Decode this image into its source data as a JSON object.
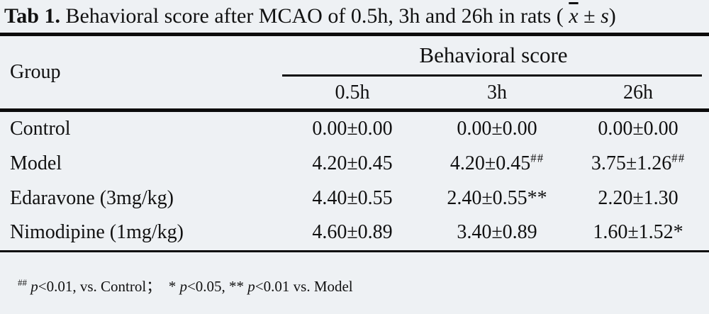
{
  "colors": {
    "background": "#eef1f4",
    "rule": "#0c0c0c",
    "text": "#111111"
  },
  "title": {
    "label_bold": "Tab 1.",
    "text": " Behavioral score after MCAO of 0.5h, 3h and 26h in rats ( ",
    "xbar": "x",
    "pm": " ± ",
    "s_var": "s",
    "close_paren": ")"
  },
  "table": {
    "group_header": "Group",
    "span_header": "Behavioral score",
    "col_headers": [
      "0.5h",
      "3h",
      "26h"
    ],
    "rows": [
      {
        "label": "Control",
        "c1": "0.00±0.00",
        "c2": "0.00±0.00",
        "c3": "0.00±0.00"
      },
      {
        "label": "Model",
        "c1": "4.20±0.45",
        "c2": "4.20±0.45",
        "c2sup": "##",
        "c3": "3.75±1.26",
        "c3sup": "##"
      },
      {
        "label": "Edaravone (3mg/kg)",
        "c1": "4.40±0.55",
        "c2": "2.40±0.55**",
        "c3": "2.20±1.30"
      },
      {
        "label": "Nimodipine (1mg/kg)",
        "c1": "4.60±0.89",
        "c2": "3.40±0.89",
        "c3": "1.60±1.52*"
      }
    ]
  },
  "footnote": {
    "sup_hashes": "##",
    "lead": " ",
    "p1": "p",
    "t1": "<0.01, vs. Control；  * ",
    "p2": "p",
    "t2": "<0.05, ** ",
    "p3": "p",
    "t3": "<0.01 vs. Model"
  },
  "chart_data": {
    "type": "table",
    "title": "Tab 1. Behavioral score after MCAO of 0.5h, 3h and 26h in rats (x̄ ± s)",
    "columns": [
      "Group",
      "0.5h",
      "3h",
      "26h"
    ],
    "span_header": "Behavioral score",
    "rows": [
      [
        "Control",
        "0.00±0.00",
        "0.00±0.00",
        "0.00±0.00"
      ],
      [
        "Model",
        "4.20±0.45",
        "4.20±0.45##",
        "3.75±1.26##"
      ],
      [
        "Edaravone (3mg/kg)",
        "4.40±0.55",
        "2.40±0.55**",
        "2.20±1.30"
      ],
      [
        "Nimodipine (1mg/kg)",
        "4.60±0.89",
        "3.40±0.89",
        "1.60±1.52*"
      ]
    ],
    "footnote": "## p<0.01, vs. Control；  * p<0.05, ** p<0.01 vs. Model"
  }
}
